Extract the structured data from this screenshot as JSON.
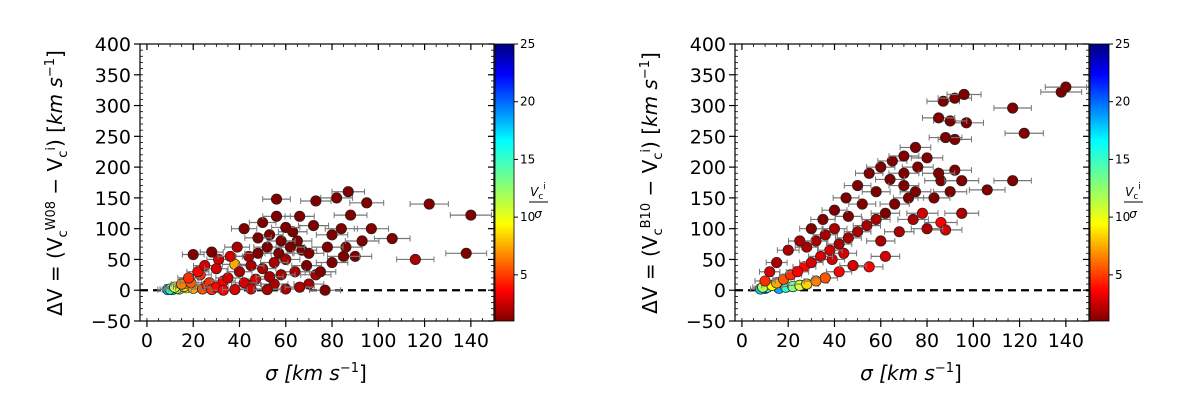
{
  "chart_data": [
    {
      "type": "scatter",
      "panel": "left",
      "xlabel_parts": [
        "σ [",
        "km s",
        "−1",
        "]"
      ],
      "ylabel_parts": [
        "ΔV = (V",
        "c",
        "W08",
        " − V",
        "c",
        "i",
        ") [",
        "km s",
        "−1",
        "]"
      ],
      "xlim": [
        -3,
        150
      ],
      "ylim": [
        -50,
        400
      ],
      "xticks": [
        0,
        20,
        40,
        60,
        80,
        100,
        120,
        140
      ],
      "yticks": [
        -50,
        0,
        50,
        100,
        150,
        200,
        250,
        300,
        350,
        400
      ],
      "reference_line_y": 0,
      "colorbar": {
        "label": "Vc^i / σ",
        "label_num": "V",
        "label_num_sub": "c",
        "label_num_sup": "i",
        "label_den": "σ",
        "range": [
          1,
          25
        ],
        "ticks": [
          5,
          10,
          15,
          20,
          25
        ],
        "colormap": "jet_r"
      },
      "points": [
        {
          "x": 56,
          "y": 148,
          "c": 1
        },
        {
          "x": 87,
          "y": 160,
          "c": 1
        },
        {
          "x": 122,
          "y": 140,
          "c": 1
        },
        {
          "x": 140,
          "y": 122,
          "c": 1
        },
        {
          "x": 73,
          "y": 145,
          "c": 1
        },
        {
          "x": 82,
          "y": 150,
          "c": 1
        },
        {
          "x": 95,
          "y": 142,
          "c": 1
        },
        {
          "x": 88,
          "y": 122,
          "c": 1
        },
        {
          "x": 106,
          "y": 84,
          "c": 1
        },
        {
          "x": 116,
          "y": 50,
          "c": 2
        },
        {
          "x": 138,
          "y": 60,
          "c": 1
        },
        {
          "x": 97,
          "y": 100,
          "c": 1
        },
        {
          "x": 78,
          "y": 70,
          "c": 1
        },
        {
          "x": 66,
          "y": 120,
          "c": 1
        },
        {
          "x": 60,
          "y": 102,
          "c": 1
        },
        {
          "x": 42,
          "y": 100,
          "c": 1
        },
        {
          "x": 48,
          "y": 85,
          "c": 1
        },
        {
          "x": 53,
          "y": 90,
          "c": 1
        },
        {
          "x": 58,
          "y": 80,
          "c": 1
        },
        {
          "x": 63,
          "y": 95,
          "c": 1
        },
        {
          "x": 70,
          "y": 60,
          "c": 1
        },
        {
          "x": 75,
          "y": 30,
          "c": 1
        },
        {
          "x": 80,
          "y": 45,
          "c": 1
        },
        {
          "x": 85,
          "y": 55,
          "c": 1
        },
        {
          "x": 90,
          "y": 55,
          "c": 1
        },
        {
          "x": 93,
          "y": 80,
          "c": 1
        },
        {
          "x": 77,
          "y": 0,
          "c": 1
        },
        {
          "x": 66,
          "y": 5,
          "c": 2
        },
        {
          "x": 73,
          "y": 25,
          "c": 2
        },
        {
          "x": 44,
          "y": 55,
          "c": 2
        },
        {
          "x": 38,
          "y": 42,
          "c": 8
        },
        {
          "x": 30,
          "y": 35,
          "c": 3
        },
        {
          "x": 25,
          "y": 40,
          "c": 3
        },
        {
          "x": 20,
          "y": 58,
          "c": 1
        },
        {
          "x": 28,
          "y": 62,
          "c": 1
        },
        {
          "x": 22,
          "y": 30,
          "c": 4
        },
        {
          "x": 18,
          "y": 20,
          "c": 5
        },
        {
          "x": 15,
          "y": 10,
          "c": 7
        },
        {
          "x": 12,
          "y": 5,
          "c": 11
        },
        {
          "x": 10,
          "y": 2,
          "c": 15
        },
        {
          "x": 9,
          "y": 1,
          "c": 18
        },
        {
          "x": 14,
          "y": 2,
          "c": 13
        },
        {
          "x": 17,
          "y": 4,
          "c": 10
        },
        {
          "x": 20,
          "y": 3,
          "c": 8
        },
        {
          "x": 24,
          "y": 2,
          "c": 6
        },
        {
          "x": 28,
          "y": 1,
          "c": 5
        },
        {
          "x": 33,
          "y": 0,
          "c": 4
        },
        {
          "x": 38,
          "y": 1,
          "c": 3
        },
        {
          "x": 45,
          "y": 2,
          "c": 3
        },
        {
          "x": 52,
          "y": 1,
          "c": 2
        },
        {
          "x": 60,
          "y": 2,
          "c": 2
        },
        {
          "x": 35,
          "y": 20,
          "c": 3
        },
        {
          "x": 40,
          "y": 30,
          "c": 2
        },
        {
          "x": 45,
          "y": 40,
          "c": 2
        },
        {
          "x": 50,
          "y": 35,
          "c": 2
        },
        {
          "x": 55,
          "y": 45,
          "c": 2
        },
        {
          "x": 60,
          "y": 50,
          "c": 2
        },
        {
          "x": 48,
          "y": 60,
          "c": 1
        },
        {
          "x": 52,
          "y": 70,
          "c": 1
        },
        {
          "x": 57,
          "y": 60,
          "c": 1
        },
        {
          "x": 62,
          "y": 70,
          "c": 1
        },
        {
          "x": 67,
          "y": 65,
          "c": 1
        },
        {
          "x": 33,
          "y": 15,
          "c": 4
        },
        {
          "x": 27,
          "y": 12,
          "c": 5
        },
        {
          "x": 42,
          "y": 12,
          "c": 3
        },
        {
          "x": 47,
          "y": 18,
          "c": 3
        },
        {
          "x": 53,
          "y": 22,
          "c": 2
        },
        {
          "x": 58,
          "y": 25,
          "c": 2
        },
        {
          "x": 64,
          "y": 30,
          "c": 2
        },
        {
          "x": 69,
          "y": 40,
          "c": 1
        },
        {
          "x": 72,
          "y": 105,
          "c": 1
        },
        {
          "x": 84,
          "y": 100,
          "c": 1
        },
        {
          "x": 86,
          "y": 70,
          "c": 1
        },
        {
          "x": 80,
          "y": 90,
          "c": 1
        },
        {
          "x": 56,
          "y": 120,
          "c": 1
        },
        {
          "x": 50,
          "y": 110,
          "c": 1
        },
        {
          "x": 65,
          "y": 80,
          "c": 1
        },
        {
          "x": 39,
          "y": 70,
          "c": 2
        },
        {
          "x": 36,
          "y": 55,
          "c": 3
        },
        {
          "x": 31,
          "y": 50,
          "c": 3
        },
        {
          "x": 23,
          "y": 25,
          "c": 5
        },
        {
          "x": 19,
          "y": 12,
          "c": 6
        },
        {
          "x": 16,
          "y": 6,
          "c": 9
        },
        {
          "x": 13,
          "y": 3,
          "c": 12
        },
        {
          "x": 11,
          "y": 1,
          "c": 16
        },
        {
          "x": 26,
          "y": 8,
          "c": 5
        },
        {
          "x": 30,
          "y": 5,
          "c": 4
        },
        {
          "x": 44,
          "y": 8,
          "c": 3
        },
        {
          "x": 55,
          "y": 10,
          "c": 2
        },
        {
          "x": 70,
          "y": 10,
          "c": 2
        }
      ]
    },
    {
      "type": "scatter",
      "panel": "right",
      "xlabel_parts": [
        "σ [",
        "km s",
        "−1",
        "]"
      ],
      "ylabel_parts": [
        "ΔV = (V",
        "c",
        "B10",
        " − V",
        "c",
        "i",
        ") [",
        "km s",
        "−1",
        "]"
      ],
      "xlim": [
        -3,
        150
      ],
      "ylim": [
        -50,
        400
      ],
      "xticks": [
        0,
        20,
        40,
        60,
        80,
        100,
        120,
        140
      ],
      "yticks": [
        -50,
        0,
        50,
        100,
        150,
        200,
        250,
        300,
        350,
        400
      ],
      "reference_line_y": 0,
      "colorbar": {
        "label": "Vc^i / σ",
        "label_num": "V",
        "label_num_sub": "c",
        "label_num_sup": "i",
        "label_den": "σ",
        "range": [
          1,
          25
        ],
        "ticks": [
          5,
          10,
          15,
          20,
          25
        ],
        "colormap": "jet_r"
      },
      "points": [
        {
          "x": 140,
          "y": 330,
          "c": 1
        },
        {
          "x": 138,
          "y": 322,
          "c": 1
        },
        {
          "x": 96,
          "y": 318,
          "c": 1
        },
        {
          "x": 92,
          "y": 312,
          "c": 1
        },
        {
          "x": 87,
          "y": 307,
          "c": 1
        },
        {
          "x": 117,
          "y": 296,
          "c": 1
        },
        {
          "x": 85,
          "y": 280,
          "c": 1
        },
        {
          "x": 90,
          "y": 275,
          "c": 1
        },
        {
          "x": 97,
          "y": 272,
          "c": 1
        },
        {
          "x": 122,
          "y": 255,
          "c": 1
        },
        {
          "x": 88,
          "y": 248,
          "c": 1
        },
        {
          "x": 92,
          "y": 245,
          "c": 1
        },
        {
          "x": 75,
          "y": 232,
          "c": 1
        },
        {
          "x": 80,
          "y": 215,
          "c": 1
        },
        {
          "x": 70,
          "y": 218,
          "c": 1
        },
        {
          "x": 65,
          "y": 210,
          "c": 1
        },
        {
          "x": 60,
          "y": 200,
          "c": 1
        },
        {
          "x": 55,
          "y": 190,
          "c": 1
        },
        {
          "x": 85,
          "y": 190,
          "c": 1
        },
        {
          "x": 92,
          "y": 195,
          "c": 1
        },
        {
          "x": 95,
          "y": 178,
          "c": 1
        },
        {
          "x": 117,
          "y": 178,
          "c": 1
        },
        {
          "x": 106,
          "y": 163,
          "c": 1
        },
        {
          "x": 86,
          "y": 178,
          "c": 1
        },
        {
          "x": 70,
          "y": 170,
          "c": 1
        },
        {
          "x": 75,
          "y": 160,
          "c": 1
        },
        {
          "x": 50,
          "y": 170,
          "c": 1
        },
        {
          "x": 45,
          "y": 150,
          "c": 1
        },
        {
          "x": 40,
          "y": 130,
          "c": 1
        },
        {
          "x": 35,
          "y": 115,
          "c": 1
        },
        {
          "x": 30,
          "y": 100,
          "c": 1
        },
        {
          "x": 25,
          "y": 80,
          "c": 2
        },
        {
          "x": 20,
          "y": 65,
          "c": 2
        },
        {
          "x": 15,
          "y": 45,
          "c": 2
        },
        {
          "x": 12,
          "y": 30,
          "c": 3
        },
        {
          "x": 10,
          "y": 15,
          "c": 5
        },
        {
          "x": 9,
          "y": 5,
          "c": 12
        },
        {
          "x": 8,
          "y": 2,
          "c": 17
        },
        {
          "x": 10,
          "y": 3,
          "c": 20
        },
        {
          "x": 11,
          "y": 5,
          "c": 14
        },
        {
          "x": 13,
          "y": 8,
          "c": 10
        },
        {
          "x": 15,
          "y": 12,
          "c": 8
        },
        {
          "x": 18,
          "y": 18,
          "c": 6
        },
        {
          "x": 21,
          "y": 25,
          "c": 5
        },
        {
          "x": 24,
          "y": 30,
          "c": 4
        },
        {
          "x": 27,
          "y": 38,
          "c": 4
        },
        {
          "x": 30,
          "y": 45,
          "c": 3
        },
        {
          "x": 34,
          "y": 55,
          "c": 3
        },
        {
          "x": 38,
          "y": 65,
          "c": 3
        },
        {
          "x": 42,
          "y": 75,
          "c": 2
        },
        {
          "x": 46,
          "y": 85,
          "c": 2
        },
        {
          "x": 50,
          "y": 95,
          "c": 2
        },
        {
          "x": 54,
          "y": 105,
          "c": 2
        },
        {
          "x": 58,
          "y": 115,
          "c": 2
        },
        {
          "x": 62,
          "y": 125,
          "c": 1
        },
        {
          "x": 66,
          "y": 140,
          "c": 1
        },
        {
          "x": 72,
          "y": 150,
          "c": 1
        },
        {
          "x": 78,
          "y": 125,
          "c": 3
        },
        {
          "x": 86,
          "y": 110,
          "c": 4
        },
        {
          "x": 88,
          "y": 98,
          "c": 3
        },
        {
          "x": 95,
          "y": 125,
          "c": 2
        },
        {
          "x": 80,
          "y": 100,
          "c": 2
        },
        {
          "x": 68,
          "y": 95,
          "c": 2
        },
        {
          "x": 62,
          "y": 55,
          "c": 3
        },
        {
          "x": 55,
          "y": 38,
          "c": 4
        },
        {
          "x": 48,
          "y": 40,
          "c": 3
        },
        {
          "x": 42,
          "y": 30,
          "c": 4
        },
        {
          "x": 36,
          "y": 20,
          "c": 6
        },
        {
          "x": 32,
          "y": 15,
          "c": 7
        },
        {
          "x": 28,
          "y": 10,
          "c": 9
        },
        {
          "x": 25,
          "y": 8,
          "c": 11
        },
        {
          "x": 22,
          "y": 6,
          "c": 13
        },
        {
          "x": 19,
          "y": 5,
          "c": 15
        },
        {
          "x": 16,
          "y": 3,
          "c": 18
        },
        {
          "x": 64,
          "y": 180,
          "c": 1
        },
        {
          "x": 58,
          "y": 160,
          "c": 1
        },
        {
          "x": 52,
          "y": 140,
          "c": 1
        },
        {
          "x": 46,
          "y": 120,
          "c": 1
        },
        {
          "x": 40,
          "y": 100,
          "c": 2
        },
        {
          "x": 36,
          "y": 90,
          "c": 2
        },
        {
          "x": 32,
          "y": 80,
          "c": 2
        },
        {
          "x": 28,
          "y": 70,
          "c": 2
        },
        {
          "x": 70,
          "y": 190,
          "c": 1
        },
        {
          "x": 76,
          "y": 200,
          "c": 1
        },
        {
          "x": 83,
          "y": 150,
          "c": 1
        },
        {
          "x": 90,
          "y": 160,
          "c": 1
        },
        {
          "x": 74,
          "y": 115,
          "c": 2
        },
        {
          "x": 60,
          "y": 80,
          "c": 2
        },
        {
          "x": 44,
          "y": 60,
          "c": 3
        },
        {
          "x": 39,
          "y": 50,
          "c": 3
        }
      ]
    }
  ]
}
